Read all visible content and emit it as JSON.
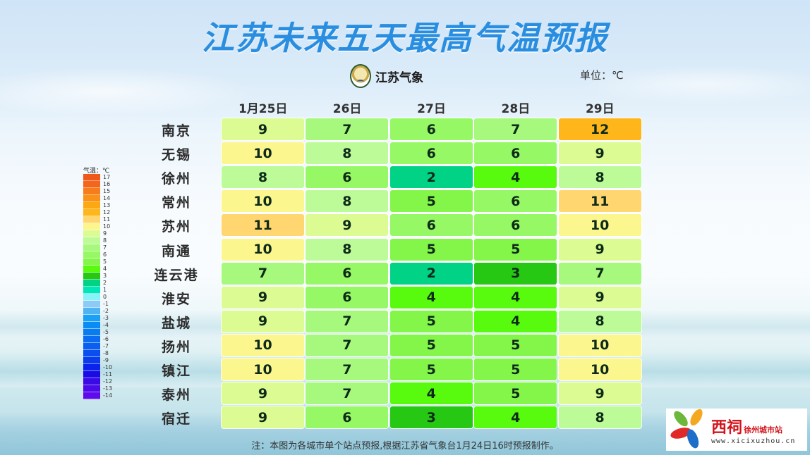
{
  "title": "江苏未来五天最高气温预报",
  "org": {
    "name": "江苏气象",
    "logo": "jiangsu-meteorology-logo"
  },
  "unit_label": "单位：℃",
  "legend": {
    "title": "气温：℃",
    "items": [
      {
        "value": "17",
        "color": "#f0581a"
      },
      {
        "value": "16",
        "color": "#f4661a"
      },
      {
        "value": "15",
        "color": "#f77c1c"
      },
      {
        "value": "14",
        "color": "#fa9216"
      },
      {
        "value": "13",
        "color": "#fca812"
      },
      {
        "value": "12",
        "color": "#feb61a"
      },
      {
        "value": "11",
        "color": "#ffd670"
      },
      {
        "value": "10",
        "color": "#fbf68e"
      },
      {
        "value": "9",
        "color": "#dcfb92"
      },
      {
        "value": "8",
        "color": "#bcfb98"
      },
      {
        "value": "7",
        "color": "#a6f97c"
      },
      {
        "value": "6",
        "color": "#96f864"
      },
      {
        "value": "5",
        "color": "#84f64a"
      },
      {
        "value": "4",
        "color": "#58fa0e"
      },
      {
        "value": "3",
        "color": "#26c814"
      },
      {
        "value": "2",
        "color": "#00d286"
      },
      {
        "value": "1",
        "color": "#00e6b8"
      },
      {
        "value": "0",
        "color": "#88f2f8"
      },
      {
        "value": "-1",
        "color": "#8ccaf8"
      },
      {
        "value": "-2",
        "color": "#4eb4f4"
      },
      {
        "value": "-3",
        "color": "#1aa0f4"
      },
      {
        "value": "-4",
        "color": "#0a8cf4"
      },
      {
        "value": "-5",
        "color": "#0a7cf2"
      },
      {
        "value": "-6",
        "color": "#0a6cf0"
      },
      {
        "value": "-7",
        "color": "#0a5ef0"
      },
      {
        "value": "-8",
        "color": "#0a4ef0"
      },
      {
        "value": "-9",
        "color": "#0a3cec"
      },
      {
        "value": "-10",
        "color": "#0a22ec"
      },
      {
        "value": "-11",
        "color": "#1a0ae6"
      },
      {
        "value": "-12",
        "color": "#3a0ae6"
      },
      {
        "value": "-13",
        "color": "#4c0ae8"
      },
      {
        "value": "-14",
        "color": "#5e0aec"
      }
    ]
  },
  "chart_data": {
    "type": "heatmap",
    "title": "江苏未来五天最高气温预报",
    "unit": "℃",
    "x": [
      "1月25日",
      "26日",
      "27日",
      "28日",
      "29日"
    ],
    "y": [
      "南京",
      "无锡",
      "徐州",
      "常州",
      "苏州",
      "南通",
      "连云港",
      "淮安",
      "盐城",
      "扬州",
      "镇江",
      "泰州",
      "宿迁"
    ],
    "values": [
      [
        9,
        7,
        6,
        7,
        12
      ],
      [
        10,
        8,
        6,
        6,
        9
      ],
      [
        8,
        6,
        2,
        4,
        8
      ],
      [
        10,
        8,
        5,
        6,
        11
      ],
      [
        11,
        9,
        6,
        6,
        10
      ],
      [
        10,
        8,
        5,
        5,
        9
      ],
      [
        7,
        6,
        2,
        3,
        7
      ],
      [
        9,
        6,
        4,
        4,
        9
      ],
      [
        9,
        7,
        5,
        4,
        8
      ],
      [
        10,
        7,
        5,
        5,
        10
      ],
      [
        10,
        7,
        5,
        5,
        10
      ],
      [
        9,
        7,
        4,
        5,
        9
      ],
      [
        9,
        6,
        3,
        4,
        8
      ]
    ],
    "colorscale_range": [
      -14,
      17
    ],
    "legend_position": "left"
  },
  "footnote": "注：本图为各城市单个站点预报,根据江苏省气象台1月24日16时预报制作。",
  "watermark": {
    "brand": "西祠",
    "sub": "徐州城市站",
    "url": "www.xicixuzhou.cn"
  }
}
